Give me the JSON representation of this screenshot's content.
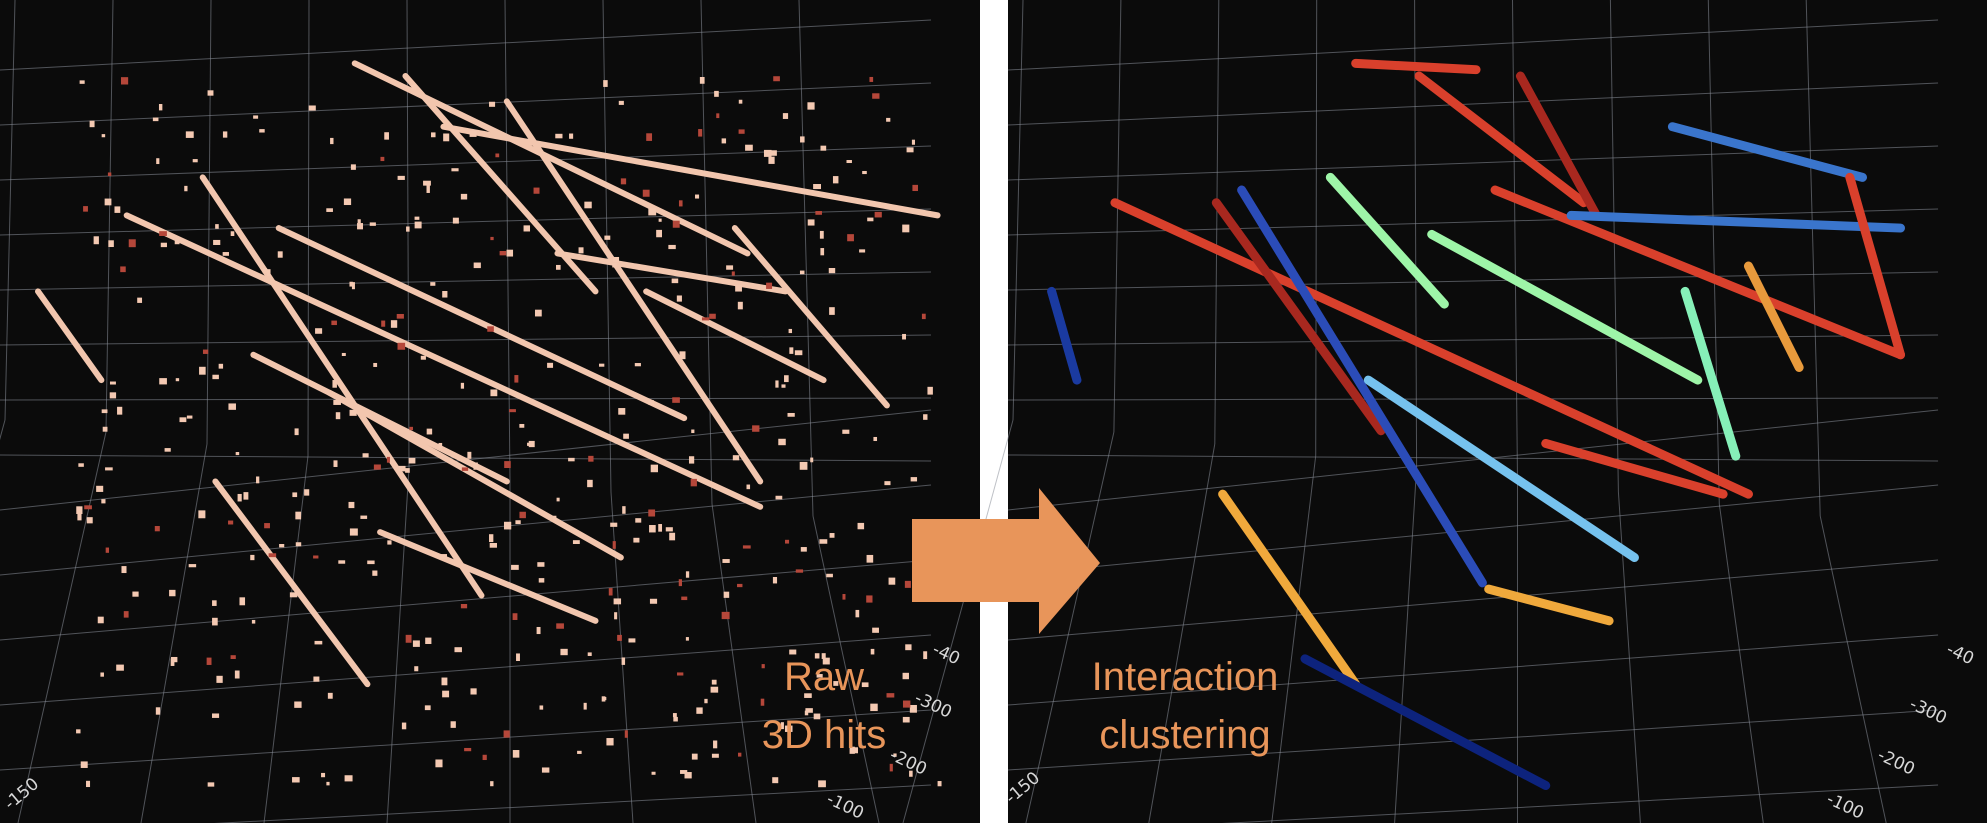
{
  "panels": [
    {
      "caption": [
        "Raw",
        "3D hits"
      ],
      "axis_labels": [
        "-150",
        "-40",
        "-300",
        "-200",
        "-100"
      ]
    },
    {
      "caption": [
        "Interaction",
        "clustering"
      ],
      "axis_labels": [
        "-150",
        "-40",
        "-300",
        "-200",
        "-100"
      ]
    }
  ]
}
